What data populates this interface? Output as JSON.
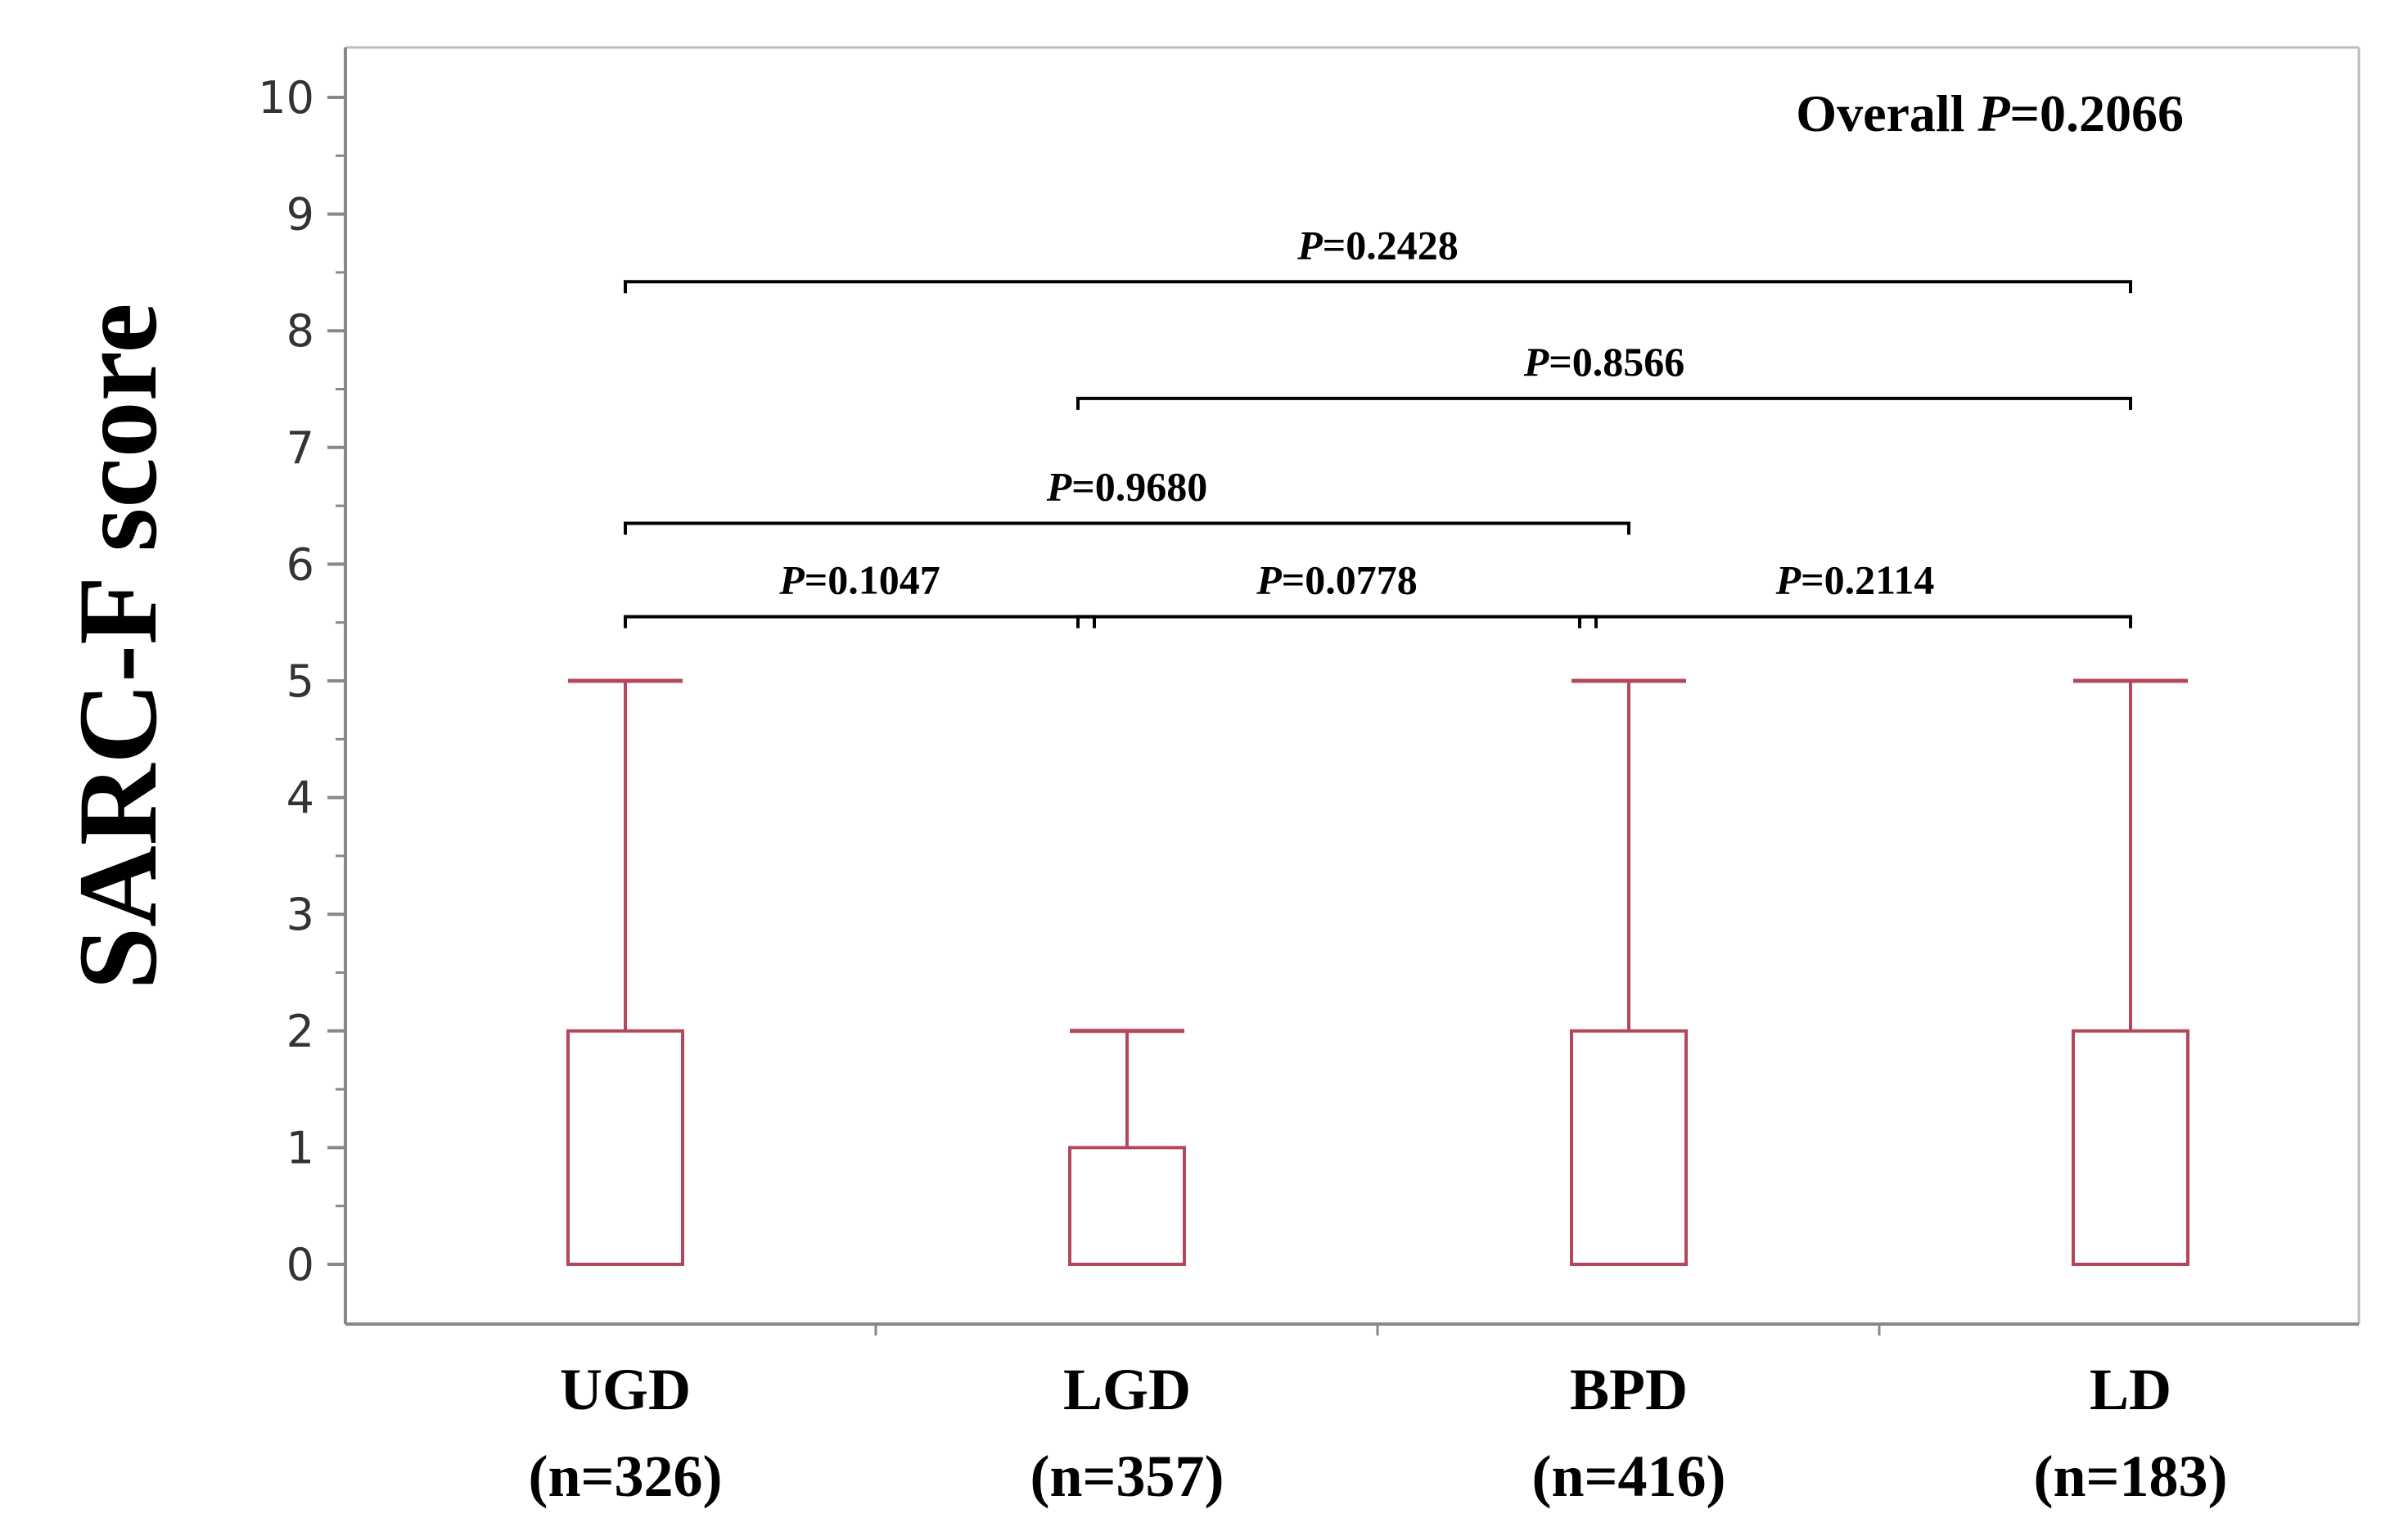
{
  "chart_data": {
    "type": "box",
    "ylabel": "SARC-F score",
    "ylim": [
      0,
      10
    ],
    "yticks": [
      "0",
      "1",
      "2",
      "3",
      "4",
      "5",
      "6",
      "7",
      "8",
      "9",
      "10"
    ],
    "categories": [
      "UGD",
      "LGD",
      "BPD",
      "LD"
    ],
    "category_n": [
      "(n=326)",
      "(n=357)",
      "(n=416)",
      "(n=183)"
    ],
    "boxes": [
      {
        "category": "UGD",
        "min": 0,
        "q1": 0,
        "median": 0,
        "q3": 2,
        "max": 5
      },
      {
        "category": "LGD",
        "min": 0,
        "q1": 0,
        "median": 0,
        "q3": 1,
        "max": 2
      },
      {
        "category": "BPD",
        "min": 0,
        "q1": 0,
        "median": 0,
        "q3": 2,
        "max": 5
      },
      {
        "category": "LD",
        "min": 0,
        "q1": 0,
        "median": 0,
        "q3": 2,
        "max": 5
      }
    ],
    "overall": {
      "prefix": "Overall ",
      "p": "P",
      "value": "=0.2066"
    },
    "comparisons": [
      {
        "from": "UGD",
        "to": "LD",
        "level": 8.42,
        "p": "P",
        "value": "=0.2428"
      },
      {
        "from": "LGD",
        "to": "LD",
        "level": 7.42,
        "p": "P",
        "value": "=0.8566"
      },
      {
        "from": "UGD",
        "to": "BPD",
        "level": 6.35,
        "p": "P",
        "value": "=0.9680"
      },
      {
        "from": "UGD",
        "to": "LGD",
        "level": 5.55,
        "p": "P",
        "value": "=0.1047"
      },
      {
        "from": "LGD",
        "to": "BPD",
        "level": 5.55,
        "p": "P",
        "value": "=0.0778"
      },
      {
        "from": "BPD",
        "to": "LD",
        "level": 5.55,
        "p": "P",
        "value": "=0.2114"
      }
    ],
    "colors": {
      "box": "#b5475a",
      "axis": "#888888",
      "bracket": "#000000"
    }
  }
}
